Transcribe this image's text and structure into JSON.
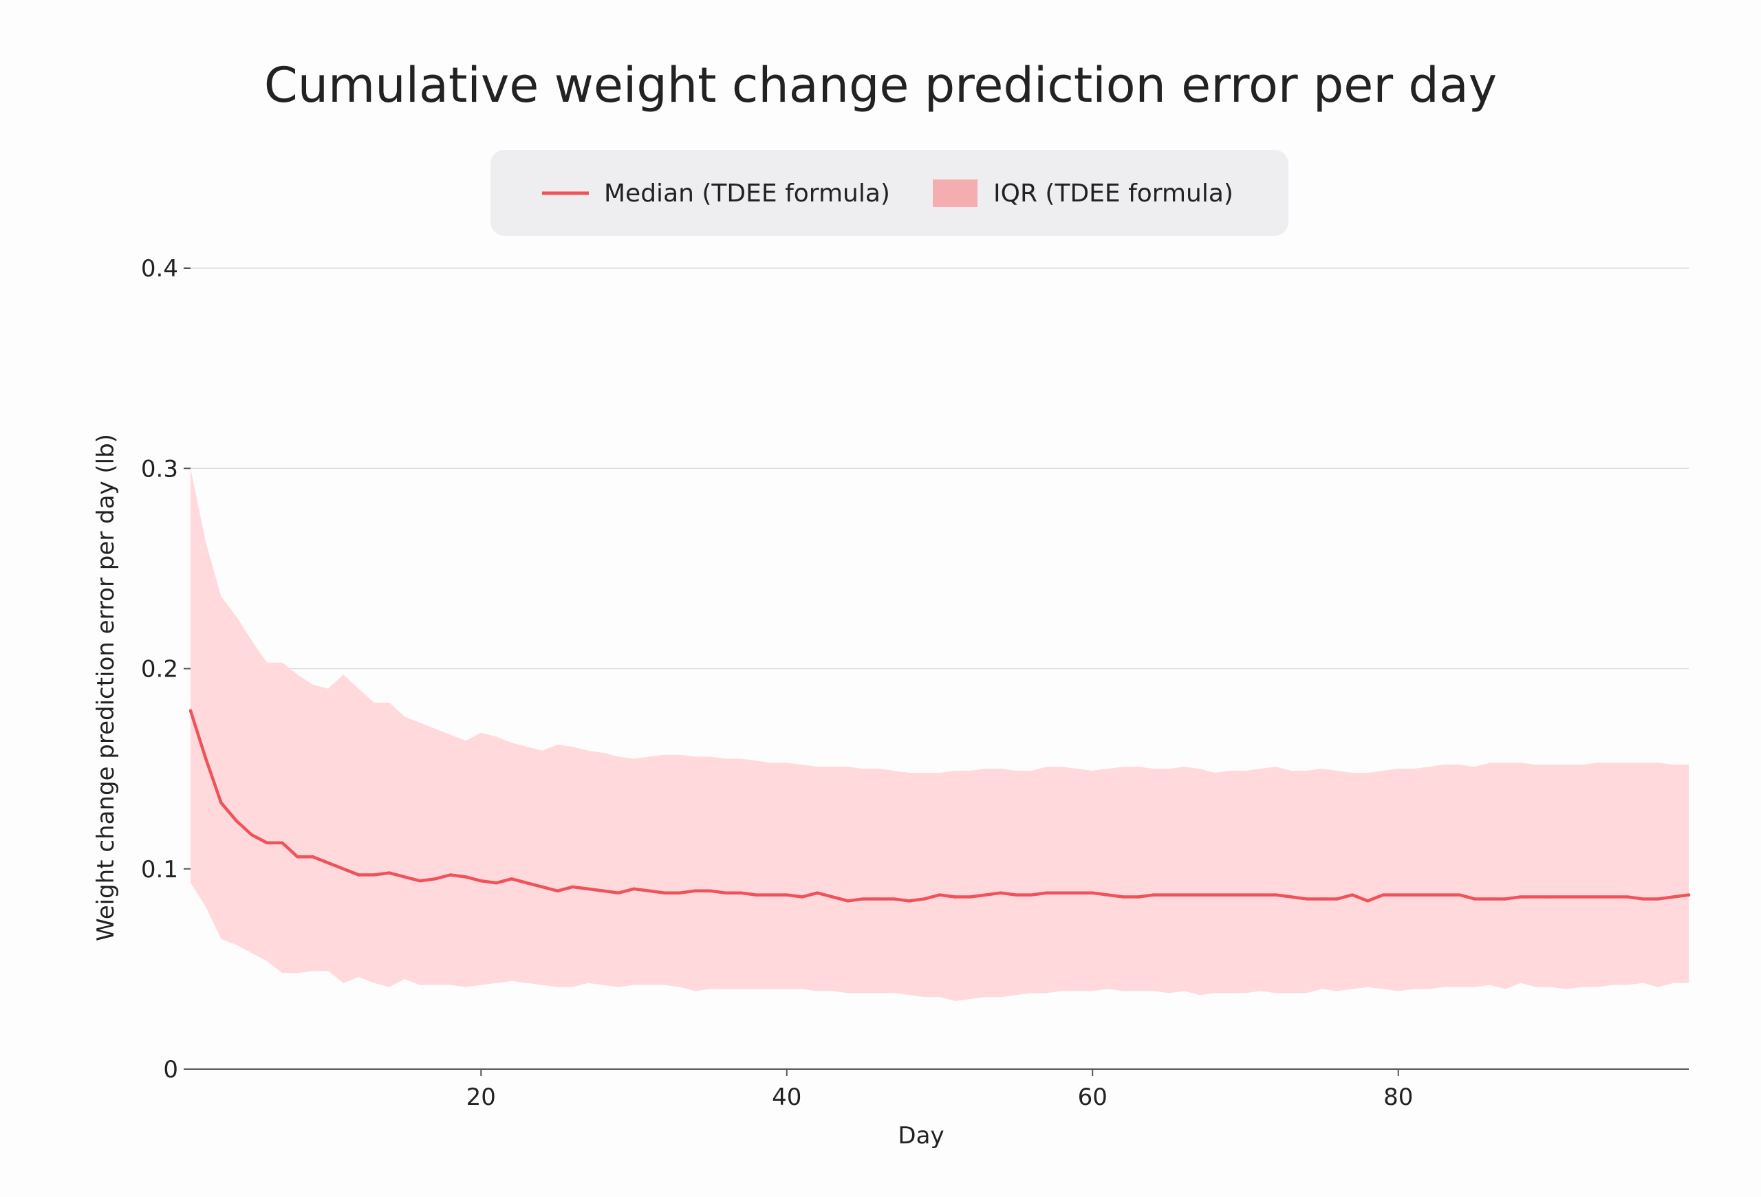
{
  "chart_data": {
    "type": "line",
    "title": "Cumulative weight change prediction error per day",
    "xlabel": "Day",
    "ylabel": "Weight change prediction error per day (lb)",
    "xlim": [
      1,
      99
    ],
    "ylim": [
      0,
      0.4
    ],
    "x_ticks": [
      20,
      40,
      60,
      80
    ],
    "x_tick_labels": [
      "20",
      "40",
      "60",
      "80"
    ],
    "y_ticks": [
      0,
      0.1,
      0.2,
      0.3,
      0.4
    ],
    "y_tick_labels": [
      "0",
      "0.1",
      "0.2",
      "0.3",
      "0.4"
    ],
    "grid": "horizontal",
    "legend": {
      "position": "top-center",
      "entries": [
        {
          "label": "Median (TDEE formula)",
          "kind": "line"
        },
        {
          "label": "IQR (TDEE formula)",
          "kind": "area"
        }
      ]
    },
    "colors": {
      "median": "#f0525a",
      "iqr_fill": "#ffd9dc",
      "legend_iqr_swatch": "#f4aeb0",
      "legend_bg": "#eeeef0",
      "grid": "#dddddd",
      "axis": "#555555"
    },
    "series": [
      {
        "name": "Median (TDEE formula)",
        "kind": "line",
        "x": [
          1,
          2,
          3,
          4,
          5,
          6,
          7,
          8,
          9,
          10,
          11,
          12,
          13,
          14,
          15,
          16,
          17,
          18,
          19,
          20,
          21,
          22,
          23,
          24,
          25,
          26,
          27,
          28,
          29,
          30,
          31,
          32,
          33,
          34,
          35,
          36,
          37,
          38,
          39,
          40,
          41,
          42,
          43,
          44,
          45,
          46,
          47,
          48,
          49,
          50,
          51,
          52,
          53,
          54,
          55,
          56,
          57,
          58,
          59,
          60,
          61,
          62,
          63,
          64,
          65,
          66,
          67,
          68,
          69,
          70,
          71,
          72,
          73,
          74,
          75,
          76,
          77,
          78,
          79,
          80,
          81,
          82,
          83,
          84,
          85,
          86,
          87,
          88,
          89,
          90,
          91,
          92,
          93,
          94,
          95,
          96,
          97,
          98,
          99
        ],
        "values": [
          0.179,
          0.155,
          0.133,
          0.124,
          0.117,
          0.113,
          0.113,
          0.106,
          0.106,
          0.103,
          0.1,
          0.097,
          0.097,
          0.098,
          0.096,
          0.094,
          0.095,
          0.097,
          0.096,
          0.094,
          0.093,
          0.095,
          0.093,
          0.091,
          0.089,
          0.091,
          0.09,
          0.089,
          0.088,
          0.09,
          0.089,
          0.088,
          0.088,
          0.089,
          0.089,
          0.088,
          0.088,
          0.087,
          0.087,
          0.087,
          0.086,
          0.088,
          0.086,
          0.084,
          0.085,
          0.085,
          0.085,
          0.084,
          0.085,
          0.087,
          0.086,
          0.086,
          0.087,
          0.088,
          0.087,
          0.087,
          0.088,
          0.088,
          0.088,
          0.088,
          0.087,
          0.086,
          0.086,
          0.087,
          0.087,
          0.087,
          0.087,
          0.087,
          0.087,
          0.087,
          0.087,
          0.087,
          0.086,
          0.085,
          0.085,
          0.085,
          0.087,
          0.084,
          0.087,
          0.087,
          0.087,
          0.087,
          0.087,
          0.087,
          0.085,
          0.085,
          0.085,
          0.086,
          0.086,
          0.086,
          0.086,
          0.086,
          0.086,
          0.086,
          0.086,
          0.085,
          0.085,
          0.086,
          0.087
        ]
      },
      {
        "name": "IQR (TDEE formula)",
        "kind": "band",
        "x": [
          1,
          2,
          3,
          4,
          5,
          6,
          7,
          8,
          9,
          10,
          11,
          12,
          13,
          14,
          15,
          16,
          17,
          18,
          19,
          20,
          21,
          22,
          23,
          24,
          25,
          26,
          27,
          28,
          29,
          30,
          31,
          32,
          33,
          34,
          35,
          36,
          37,
          38,
          39,
          40,
          41,
          42,
          43,
          44,
          45,
          46,
          47,
          48,
          49,
          50,
          51,
          52,
          53,
          54,
          55,
          56,
          57,
          58,
          59,
          60,
          61,
          62,
          63,
          64,
          65,
          66,
          67,
          68,
          69,
          70,
          71,
          72,
          73,
          74,
          75,
          76,
          77,
          78,
          79,
          80,
          81,
          82,
          83,
          84,
          85,
          86,
          87,
          88,
          89,
          90,
          91,
          92,
          93,
          94,
          95,
          96,
          97,
          98,
          99
        ],
        "lower": [
          0.093,
          0.081,
          0.065,
          0.062,
          0.058,
          0.054,
          0.048,
          0.048,
          0.049,
          0.049,
          0.043,
          0.046,
          0.043,
          0.041,
          0.045,
          0.042,
          0.042,
          0.042,
          0.041,
          0.042,
          0.043,
          0.044,
          0.043,
          0.042,
          0.041,
          0.041,
          0.043,
          0.042,
          0.041,
          0.042,
          0.042,
          0.042,
          0.041,
          0.039,
          0.04,
          0.04,
          0.04,
          0.04,
          0.04,
          0.04,
          0.04,
          0.039,
          0.039,
          0.038,
          0.038,
          0.038,
          0.038,
          0.037,
          0.036,
          0.036,
          0.034,
          0.035,
          0.036,
          0.036,
          0.037,
          0.038,
          0.038,
          0.039,
          0.039,
          0.039,
          0.04,
          0.039,
          0.039,
          0.039,
          0.038,
          0.039,
          0.037,
          0.038,
          0.038,
          0.038,
          0.039,
          0.038,
          0.038,
          0.038,
          0.04,
          0.039,
          0.04,
          0.041,
          0.04,
          0.039,
          0.04,
          0.04,
          0.041,
          0.041,
          0.041,
          0.042,
          0.04,
          0.043,
          0.041,
          0.041,
          0.04,
          0.041,
          0.041,
          0.042,
          0.042,
          0.043,
          0.041,
          0.043,
          0.043
        ],
        "upper": [
          0.3,
          0.263,
          0.236,
          0.226,
          0.214,
          0.203,
          0.203,
          0.197,
          0.192,
          0.19,
          0.197,
          0.19,
          0.183,
          0.183,
          0.176,
          0.173,
          0.17,
          0.167,
          0.164,
          0.168,
          0.166,
          0.163,
          0.161,
          0.159,
          0.162,
          0.161,
          0.159,
          0.158,
          0.156,
          0.155,
          0.156,
          0.157,
          0.157,
          0.156,
          0.156,
          0.155,
          0.155,
          0.154,
          0.153,
          0.153,
          0.152,
          0.151,
          0.151,
          0.151,
          0.15,
          0.15,
          0.149,
          0.148,
          0.148,
          0.148,
          0.149,
          0.149,
          0.15,
          0.15,
          0.149,
          0.149,
          0.151,
          0.151,
          0.15,
          0.149,
          0.15,
          0.151,
          0.151,
          0.15,
          0.15,
          0.151,
          0.15,
          0.148,
          0.149,
          0.149,
          0.15,
          0.151,
          0.149,
          0.149,
          0.15,
          0.149,
          0.148,
          0.148,
          0.149,
          0.15,
          0.15,
          0.151,
          0.152,
          0.152,
          0.151,
          0.153,
          0.153,
          0.153,
          0.152,
          0.152,
          0.152,
          0.152,
          0.153,
          0.153,
          0.153,
          0.153,
          0.153,
          0.152,
          0.152
        ]
      }
    ]
  }
}
